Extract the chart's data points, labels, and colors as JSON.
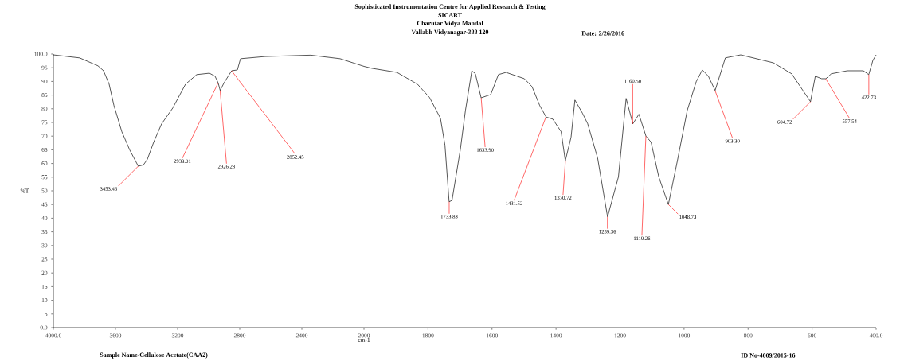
{
  "chart_data": [
    {
      "type": "line",
      "ylabel": "%T",
      "grid": false,
      "xlim": [
        4000,
        2000
      ],
      "ylim": [
        0,
        100
      ],
      "xticks": [
        {
          "value": 4000,
          "label": "4000.0"
        },
        3600,
        3200,
        2800,
        2400,
        2000
      ],
      "yticks": [
        {
          "value": 0,
          "label": "0.0"
        },
        5,
        10,
        15,
        20,
        25,
        30,
        35,
        40,
        45,
        50,
        55,
        60,
        65,
        70,
        75,
        80,
        85,
        90,
        95,
        {
          "value": 100,
          "label": "100.0"
        }
      ],
      "marker": "none",
      "line_style": "solid",
      "series": [
        {
          "color": "#000000",
          "x": [
            4000,
            3831,
            3713,
            3677,
            3641,
            3610,
            3559,
            3508,
            3453,
            3420,
            3395,
            3354,
            3303,
            3231,
            3149,
            3077,
            2995,
            2959,
            2939,
            2926,
            2900,
            2852,
            2815,
            2795,
            2636,
            2344,
            2154,
            2000
          ],
          "values": [
            99.7,
            98.6,
            95.7,
            93.9,
            89.0,
            81.2,
            71.6,
            64.9,
            59.0,
            59.5,
            61.5,
            67.8,
            74.5,
            80.3,
            89.0,
            92.5,
            93.0,
            91.9,
            89.5,
            86.7,
            89.6,
            93.9,
            94.2,
            98.3,
            99.1,
            99.6,
            98.3,
            95.5
          ]
        }
      ],
      "annotations": [
        {
          "text": "3453.46",
          "x": 3453.46,
          "y": 59.0
        },
        {
          "text": "2939.01",
          "x": 2939.01,
          "y": 89.5
        },
        {
          "text": "2926.28",
          "x": 2926.28,
          "y": 86.7
        },
        {
          "text": "2852.45",
          "x": 2852.45,
          "y": 93.9
        },
        "Charutar Vidya Mandal",
        "Vallabh Vidyanagar-388 120",
        "Date: 2/26/2016",
        "Sample Name-Cellulose Acetate(CAA2)",
        "ID No-4009/2015-16"
      ]
    },
    {
      "type": "line",
      "title": "Sophisticated Instrumentation Centre for Applied Research & Testing",
      "subtitle": "SICART",
      "xlabel": "cm-1",
      "tick_labels": "x",
      "grid": false,
      "xlim": [
        2000,
        400
      ],
      "ylim": [
        0,
        100
      ],
      "xticks": [
        1800,
        1600,
        1400,
        1200,
        1000,
        800,
        600,
        {
          "value": 400,
          "label": "400.0"
        }
      ],
      "marker": "none",
      "line_style": "solid",
      "series": [
        {
          "color": "#000000",
          "x": [
            2000,
            1976,
            1897,
            1833,
            1795,
            1761,
            1747,
            1734,
            1725,
            1699,
            1683,
            1663,
            1652,
            1634,
            1604,
            1580,
            1556,
            1499,
            1475,
            1451,
            1431,
            1410,
            1384,
            1371,
            1353,
            1341,
            1317,
            1301,
            1270,
            1239,
            1205,
            1181,
            1160,
            1141,
            1119,
            1103,
            1079,
            1049,
            1021,
            990,
            962,
            943,
            924,
            903,
            871,
            823,
            721,
            664,
            605,
            590,
            570,
            557,
            540,
            490,
            440,
            423,
            410,
            400
          ],
          "values": [
            95.5,
            94.8,
            93.3,
            89.0,
            84.1,
            76.5,
            66.7,
            46.0,
            46.5,
            65.0,
            79.4,
            93.9,
            92.8,
            84.0,
            85.2,
            92.5,
            93.3,
            91.0,
            88.1,
            81.2,
            77.0,
            76.2,
            71.6,
            61.0,
            69.6,
            83.2,
            78.3,
            74.5,
            62.0,
            40.5,
            55.1,
            83.8,
            74.5,
            78.0,
            70.0,
            67.8,
            55.1,
            45.0,
            60.9,
            79.4,
            89.9,
            94.2,
            91.9,
            86.7,
            98.6,
            99.7,
            96.8,
            92.8,
            82.6,
            91.9,
            91.0,
            91.0,
            92.8,
            93.9,
            93.9,
            92.5,
            97.7,
            99.7
          ]
        }
      ],
      "annotations": [
        {
          "text": "1733.83",
          "x": 1733.83,
          "y": 46.0
        },
        {
          "text": "1633.90",
          "x": 1633.9,
          "y": 84.0
        },
        {
          "text": "1431.52",
          "x": 1431.52,
          "y": 77.0
        },
        {
          "text": "1370.72",
          "x": 1370.72,
          "y": 61.0
        },
        {
          "text": "1239.36",
          "x": 1239.36,
          "y": 40.5
        },
        {
          "text": "1160.50",
          "x": 1160.5,
          "y": 74.5
        },
        {
          "text": "1119.26",
          "x": 1119.26,
          "y": 70.0
        },
        {
          "text": "1048.73",
          "x": 1048.73,
          "y": 45.0
        },
        {
          "text": "903.30",
          "x": 903.3,
          "y": 86.7
        },
        {
          "text": "604.72",
          "x": 604.72,
          "y": 82.6
        },
        {
          "text": "557.54",
          "x": 557.54,
          "y": 91.0
        },
        {
          "text": "422.73",
          "x": 422.73,
          "y": 92.5
        }
      ]
    }
  ]
}
